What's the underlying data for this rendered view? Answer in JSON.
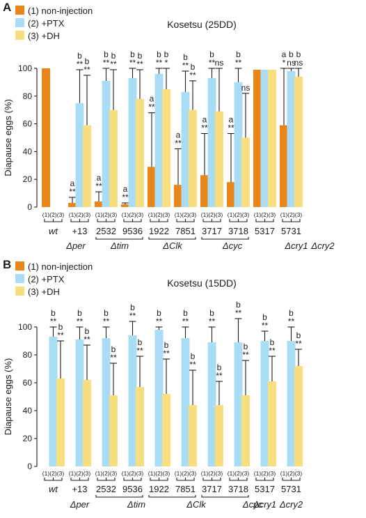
{
  "legend": {
    "items": [
      {
        "label": "(1) non-injection",
        "color": "#E8861A"
      },
      {
        "label": "(2) +PTX",
        "color": "#A9DCF5"
      },
      {
        "label": "(3) +DH",
        "color": "#F8DE7E"
      }
    ]
  },
  "colors": {
    "non_injection": "#E8861A",
    "ptx": "#A9DCF5",
    "dh": "#F8DE7E",
    "axis": "#1a1a1a"
  },
  "chart_data": [
    {
      "panel": "A",
      "title": "Kosetsu (25DD)",
      "type": "bar",
      "ylabel": "Diapause eggs (%)",
      "ylim": [
        0,
        100
      ],
      "yticks": [
        "0",
        "20",
        "40",
        "60",
        "80",
        "100"
      ],
      "condition_labels": [
        "(1)",
        "(2)",
        "(3)"
      ],
      "groups": [
        {
          "line1": "wt",
          "line2": "",
          "bars": [
            {
              "cond": 1,
              "value": 100,
              "err": null,
              "sig": []
            }
          ]
        },
        {
          "line1": "+13",
          "line2": "",
          "bars": [
            {
              "cond": 1,
              "value": 3,
              "err": 7,
              "sig": [
                "a",
                "**"
              ]
            },
            {
              "cond": 2,
              "value": 75,
              "err": 99,
              "sig": [
                "b",
                "**"
              ]
            },
            {
              "cond": 3,
              "value": 59,
              "err": 95,
              "sig": [
                "b",
                "**"
              ]
            }
          ]
        },
        {
          "line1": "2532",
          "line2": "",
          "bars": [
            {
              "cond": 1,
              "value": 4,
              "err": 11,
              "sig": [
                "a",
                "**"
              ]
            },
            {
              "cond": 2,
              "value": 91,
              "err": 100,
              "sig": [
                "b",
                "**"
              ]
            },
            {
              "cond": 3,
              "value": 70,
              "err": 99,
              "sig": [
                "b",
                "**"
              ]
            }
          ]
        },
        {
          "line1": "9536",
          "line2": "",
          "bars": [
            {
              "cond": 1,
              "value": 2,
              "err": 3,
              "sig": [
                "a",
                "**"
              ]
            },
            {
              "cond": 2,
              "value": 93,
              "err": 100,
              "sig": [
                "b",
                "**"
              ]
            },
            {
              "cond": 3,
              "value": 78,
              "err": 99,
              "sig": [
                "b",
                "**"
              ]
            }
          ]
        },
        {
          "line1": "1922",
          "line2": "",
          "bars": [
            {
              "cond": 1,
              "value": 29,
              "err": 68,
              "sig": [
                "a",
                "**"
              ]
            },
            {
              "cond": 2,
              "value": 96,
              "err": 100,
              "sig": [
                "b",
                "**"
              ]
            },
            {
              "cond": 3,
              "value": 85,
              "err": 100,
              "sig": [
                "b",
                "*"
              ]
            }
          ]
        },
        {
          "line1": "7851",
          "line2": "",
          "bars": [
            {
              "cond": 1,
              "value": 16,
              "err": 42,
              "sig": [
                "a",
                "**"
              ]
            },
            {
              "cond": 2,
              "value": 83,
              "err": 98,
              "sig": [
                "b",
                "**"
              ]
            },
            {
              "cond": 3,
              "value": 70,
              "err": 91,
              "sig": [
                "b",
                "**"
              ]
            }
          ]
        },
        {
          "line1": "3717",
          "line2": "",
          "bars": [
            {
              "cond": 1,
              "value": 23,
              "err": 53,
              "sig": [
                "a",
                "**"
              ]
            },
            {
              "cond": 2,
              "value": 93,
              "err": 100,
              "sig": [
                "b",
                "**"
              ]
            },
            {
              "cond": 3,
              "value": 69,
              "err": 100,
              "sig": [
                "ns"
              ]
            }
          ]
        },
        {
          "line1": "3718",
          "line2": "",
          "bars": [
            {
              "cond": 1,
              "value": 18,
              "err": 53,
              "sig": [
                "a",
                "**"
              ]
            },
            {
              "cond": 2,
              "value": 90,
              "err": 100,
              "sig": [
                "b",
                "**"
              ]
            },
            {
              "cond": 3,
              "value": 50,
              "err": 82,
              "sig": [
                "ns"
              ]
            }
          ]
        },
        {
          "line1": "5317",
          "line2": "",
          "bars": [
            {
              "cond": 1,
              "value": 99,
              "err": null,
              "sig": []
            },
            {
              "cond": 2,
              "value": 99,
              "err": null,
              "sig": []
            },
            {
              "cond": 3,
              "value": 99,
              "err": null,
              "sig": []
            }
          ]
        },
        {
          "line1": "5731",
          "line2": "",
          "bars": [
            {
              "cond": 1,
              "value": 59,
              "err": 100,
              "sig": [
                "a",
                "*"
              ]
            },
            {
              "cond": 2,
              "value": 98,
              "err": 100,
              "sig": [
                "b",
                "ns"
              ]
            },
            {
              "cond": 3,
              "value": 94,
              "err": 100,
              "sig": [
                "b",
                "ns"
              ]
            }
          ]
        }
      ],
      "gene_labels": [
        {
          "text": "Δper",
          "italic": true
        },
        {
          "text": "Δtim",
          "italic": true
        },
        {
          "text": "ΔClk",
          "italic": true
        },
        {
          "text": "Δcyc",
          "italic": true
        },
        {
          "text": "Δcry1",
          "italic": true
        },
        {
          "text": "Δcry2",
          "italic": true
        }
      ]
    },
    {
      "panel": "B",
      "title": "Kosetsu (15DD)",
      "type": "bar",
      "ylabel": "Diapause eggs (%)",
      "ylim": [
        0,
        100
      ],
      "yticks": [
        "0",
        "20",
        "40",
        "60",
        "80",
        "100"
      ],
      "condition_labels": [
        "(1)",
        "(2)",
        "(3)"
      ],
      "groups": [
        {
          "line1": "wt",
          "line2": "",
          "bars": [
            {
              "cond": 1,
              "value": 0,
              "err": null,
              "sig": []
            },
            {
              "cond": 2,
              "value": 93,
              "err": 100,
              "sig": [
                "b",
                "**"
              ]
            },
            {
              "cond": 3,
              "value": 63,
              "err": 90,
              "sig": [
                "b",
                "**"
              ]
            }
          ]
        },
        {
          "line1": "+13",
          "line2": "Δper",
          "bars": [
            {
              "cond": 1,
              "value": 0,
              "err": null,
              "sig": []
            },
            {
              "cond": 2,
              "value": 91,
              "err": 100,
              "sig": [
                "b",
                "**"
              ]
            },
            {
              "cond": 3,
              "value": 62,
              "err": 87,
              "sig": [
                "b",
                "**"
              ]
            }
          ]
        },
        {
          "line1": "2532",
          "line2": "",
          "bars": [
            {
              "cond": 1,
              "value": 0,
              "err": null,
              "sig": []
            },
            {
              "cond": 2,
              "value": 92,
              "err": 100,
              "sig": [
                "b",
                "**"
              ]
            },
            {
              "cond": 3,
              "value": 51,
              "err": 74,
              "sig": [
                "b",
                "**"
              ]
            }
          ]
        },
        {
          "line1": "9536",
          "line2": "",
          "bars": [
            {
              "cond": 1,
              "value": 0,
              "err": null,
              "sig": []
            },
            {
              "cond": 2,
              "value": 94,
              "err": 104,
              "sig": [
                "b",
                "**"
              ]
            },
            {
              "cond": 3,
              "value": 57,
              "err": 79,
              "sig": [
                "b",
                "**"
              ]
            }
          ]
        },
        {
          "line1": "1922",
          "line2": "",
          "bars": [
            {
              "cond": 1,
              "value": 0,
              "err": null,
              "sig": []
            },
            {
              "cond": 2,
              "value": 98,
              "err": 100,
              "sig": [
                "b",
                "**"
              ]
            },
            {
              "cond": 3,
              "value": 52,
              "err": 77,
              "sig": [
                "b",
                "**"
              ]
            }
          ]
        },
        {
          "line1": "7851",
          "line2": "",
          "bars": [
            {
              "cond": 1,
              "value": 0,
              "err": null,
              "sig": []
            },
            {
              "cond": 2,
              "value": 92,
              "err": 100,
              "sig": [
                "b",
                "**"
              ]
            },
            {
              "cond": 3,
              "value": 44,
              "err": 69,
              "sig": [
                "b",
                "**"
              ]
            }
          ]
        },
        {
          "line1": "3717",
          "line2": "",
          "bars": [
            {
              "cond": 1,
              "value": 0,
              "err": null,
              "sig": []
            },
            {
              "cond": 2,
              "value": 89,
              "err": 100,
              "sig": [
                "b",
                "**"
              ]
            },
            {
              "cond": 3,
              "value": 44,
              "err": 61,
              "sig": [
                "b",
                "**"
              ]
            }
          ]
        },
        {
          "line1": "3718",
          "line2": "",
          "bars": [
            {
              "cond": 1,
              "value": 0,
              "err": null,
              "sig": []
            },
            {
              "cond": 2,
              "value": 89,
              "err": 106,
              "sig": [
                "b",
                "**"
              ]
            },
            {
              "cond": 3,
              "value": 51,
              "err": 76,
              "sig": [
                "b",
                "**"
              ]
            }
          ]
        },
        {
          "line1": "5317",
          "line2": "Δcry1",
          "bars": [
            {
              "cond": 1,
              "value": 0,
              "err": null,
              "sig": []
            },
            {
              "cond": 2,
              "value": 90,
              "err": 97,
              "sig": [
                "b",
                "**"
              ]
            },
            {
              "cond": 3,
              "value": 61,
              "err": 79,
              "sig": [
                "b",
                "**"
              ]
            }
          ]
        },
        {
          "line1": "5731",
          "line2": "Δcry2",
          "bars": [
            {
              "cond": 1,
              "value": 0,
              "err": null,
              "sig": []
            },
            {
              "cond": 2,
              "value": 90,
              "err": 100,
              "sig": [
                "b",
                "**"
              ]
            },
            {
              "cond": 3,
              "value": 72,
              "err": 84,
              "sig": [
                "b",
                "**"
              ]
            }
          ]
        }
      ],
      "gene_labels": [
        {
          "text": "Δtim",
          "italic": true
        },
        {
          "text": "ΔClk",
          "italic": true
        },
        {
          "text": "Δcyc",
          "italic": true
        }
      ]
    }
  ]
}
